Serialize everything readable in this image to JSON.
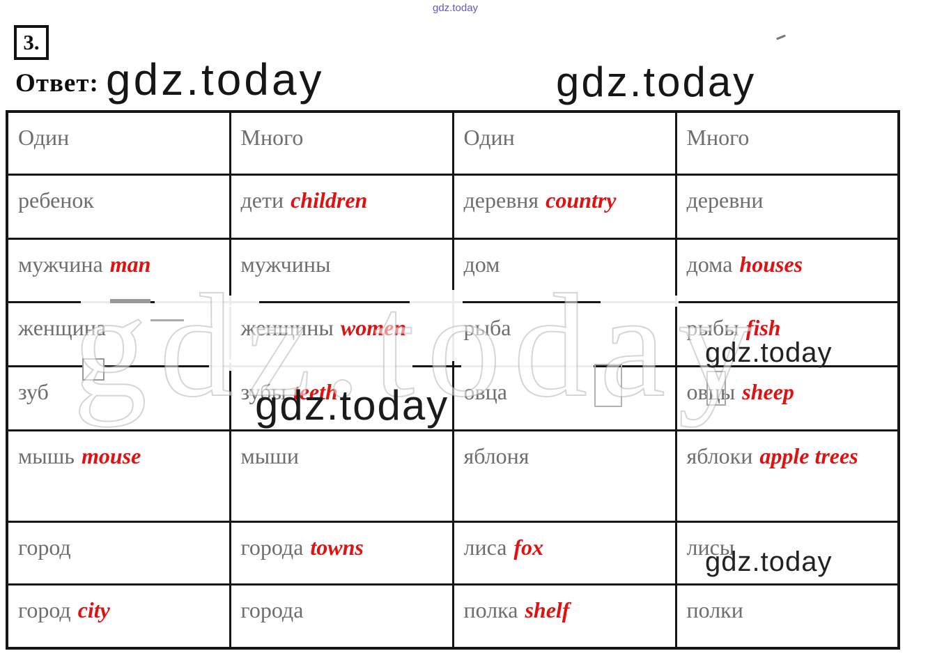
{
  "brand": {
    "name": "gdz.today"
  },
  "colors": {
    "english_red": "#e01111",
    "table_text_gray": "#6e6e6e",
    "watermark_blue": "#5a5ad0"
  },
  "header": {
    "task_number": "3.",
    "answer_label": "Ответ:"
  },
  "table": {
    "headers": [
      "Один",
      "Много",
      "Один",
      "Много"
    ],
    "rows": [
      [
        {
          "ru": "ребенок",
          "en": ""
        },
        {
          "ru": "дети",
          "en": "children"
        },
        {
          "ru": "деревня",
          "en": "country"
        },
        {
          "ru": "деревни",
          "en": ""
        }
      ],
      [
        {
          "ru": "мужчина",
          "en": "man"
        },
        {
          "ru": "мужчины",
          "en": ""
        },
        {
          "ru": "дом",
          "en": ""
        },
        {
          "ru": "дома",
          "en": "houses"
        }
      ],
      [
        {
          "ru": "женщина",
          "en": ""
        },
        {
          "ru": "женщины",
          "en": "women"
        },
        {
          "ru": "рыба",
          "en": ""
        },
        {
          "ru": "рыбы",
          "en": "fish"
        }
      ],
      [
        {
          "ru": "зуб",
          "en": ""
        },
        {
          "ru": "зубы",
          "en": "teeth"
        },
        {
          "ru": "овца",
          "en": ""
        },
        {
          "ru": "овцы",
          "en": "sheep"
        }
      ],
      [
        {
          "ru": "мышь",
          "en": "mouse"
        },
        {
          "ru": "мыши",
          "en": ""
        },
        {
          "ru": "яблоня",
          "en": ""
        },
        {
          "ru": "яблоки",
          "en": "apple trees"
        }
      ],
      [
        {
          "ru": "город",
          "en": ""
        },
        {
          "ru": "города",
          "en": "towns"
        },
        {
          "ru": "лиса",
          "en": "fox"
        },
        {
          "ru": "лисы",
          "en": ""
        }
      ],
      [
        {
          "ru": "город",
          "en": "city"
        },
        {
          "ru": "города",
          "en": ""
        },
        {
          "ru": "полка",
          "en": "shelf"
        },
        {
          "ru": "полки",
          "en": ""
        }
      ]
    ]
  }
}
